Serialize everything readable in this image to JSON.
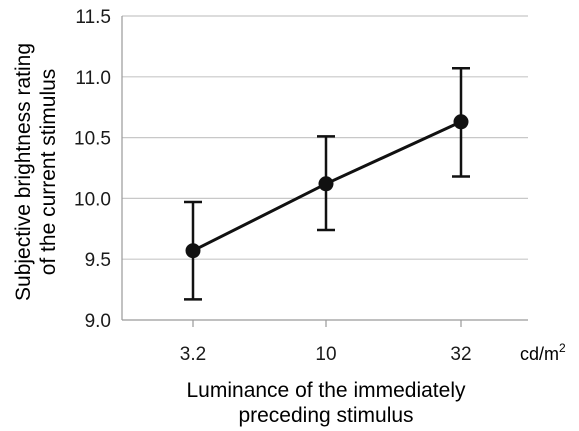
{
  "chart_data": {
    "type": "line",
    "categories": [
      "3.2",
      "10",
      "32"
    ],
    "series": [
      {
        "values": [
          9.57,
          10.12,
          10.63
        ],
        "error_upper": [
          9.97,
          10.51,
          11.07
        ],
        "error_lower": [
          9.17,
          9.74,
          10.18
        ]
      }
    ],
    "ylim": [
      9.0,
      11.5
    ],
    "yticks": [
      "9.0",
      "9.5",
      "10.0",
      "10.5",
      "11.0",
      "11.5"
    ],
    "ylabel_lines": [
      "Subjective brightness rating",
      "of the current stimulus"
    ],
    "xlabel_lines": [
      "Luminance of the immediately",
      "preceding stimulus"
    ],
    "x_unit": "cd/m",
    "x_unit_superscript": "2",
    "grid": true,
    "marker_color": "#111111",
    "line_color": "#111111",
    "grid_color": "#c8c8c8",
    "axis_color": "#9a9a9a"
  }
}
